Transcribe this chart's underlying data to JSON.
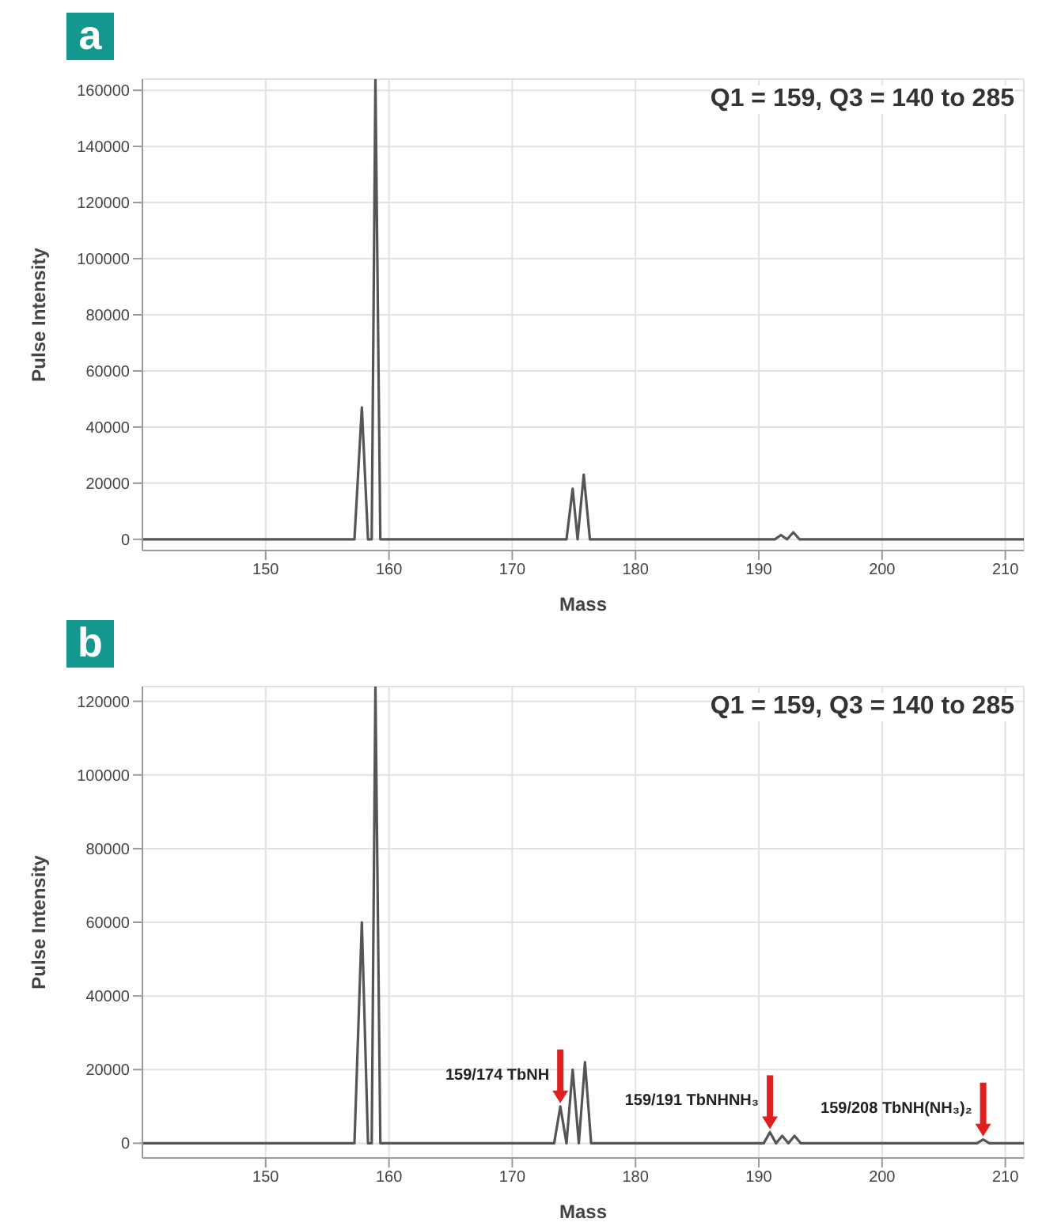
{
  "chart_data": [
    {
      "type": "line",
      "title": "a",
      "subtitle": "Q1 = 159, Q3 = 140 to 285",
      "xlabel": "Mass",
      "ylabel": "Pulse Intensity",
      "xlim": [
        140,
        211.5
      ],
      "xticks": [
        150,
        160,
        170,
        180,
        190,
        200,
        210
      ],
      "ylim": [
        -4000,
        164000
      ],
      "yticks": [
        0,
        20000,
        40000,
        60000,
        80000,
        100000,
        120000,
        140000,
        160000
      ],
      "grid": true,
      "x": [
        140,
        157.2,
        157.8,
        158.3,
        158.6,
        158.9,
        159.3,
        160,
        174.4,
        174.9,
        175.3,
        175.8,
        176.3,
        191.3,
        191.8,
        192.3,
        192.8,
        193.3,
        211.5
      ],
      "series": [
        {
          "color": "#555555",
          "values": [
            0,
            0,
            47000,
            0,
            0,
            164000,
            0,
            0,
            0,
            18000,
            0,
            23000,
            0,
            0,
            1500,
            0,
            2500,
            0,
            0
          ]
        }
      ]
    },
    {
      "type": "line",
      "title": "b",
      "subtitle": "Q1 = 159, Q3 = 140 to 285",
      "xlabel": "Mass",
      "ylabel": "Pulse Intensity",
      "xlim": [
        140,
        211.5
      ],
      "xticks": [
        150,
        160,
        170,
        180,
        190,
        200,
        210
      ],
      "ylim": [
        -4000,
        124000
      ],
      "yticks": [
        0,
        20000,
        40000,
        60000,
        80000,
        100000,
        120000
      ],
      "grid": true,
      "x": [
        140,
        157.2,
        157.8,
        158.3,
        158.6,
        158.9,
        159.3,
        160,
        173.4,
        173.9,
        174.4,
        174.9,
        175.4,
        175.9,
        176.4,
        190.4,
        190.9,
        191.4,
        191.9,
        192.4,
        192.9,
        193.4,
        207.7,
        208.2,
        208.7,
        211.5
      ],
      "series": [
        {
          "color": "#555555",
          "values": [
            0,
            0,
            60000,
            0,
            0,
            124000,
            0,
            0,
            0,
            10000,
            0,
            20000,
            0,
            22000,
            0,
            0,
            3000,
            0,
            2000,
            0,
            2000,
            0,
            0,
            1000,
            0,
            0
          ]
        }
      ],
      "annotations": [
        {
          "text": "159/174 TbNH",
          "x": 173.9,
          "y": 10000
        },
        {
          "text": "159/191 TbNHNH₃",
          "x": 190.9,
          "y": 3000
        },
        {
          "text": "159/208 TbNH(NH₃)₂",
          "x": 208.2,
          "y": 1000
        }
      ]
    }
  ]
}
